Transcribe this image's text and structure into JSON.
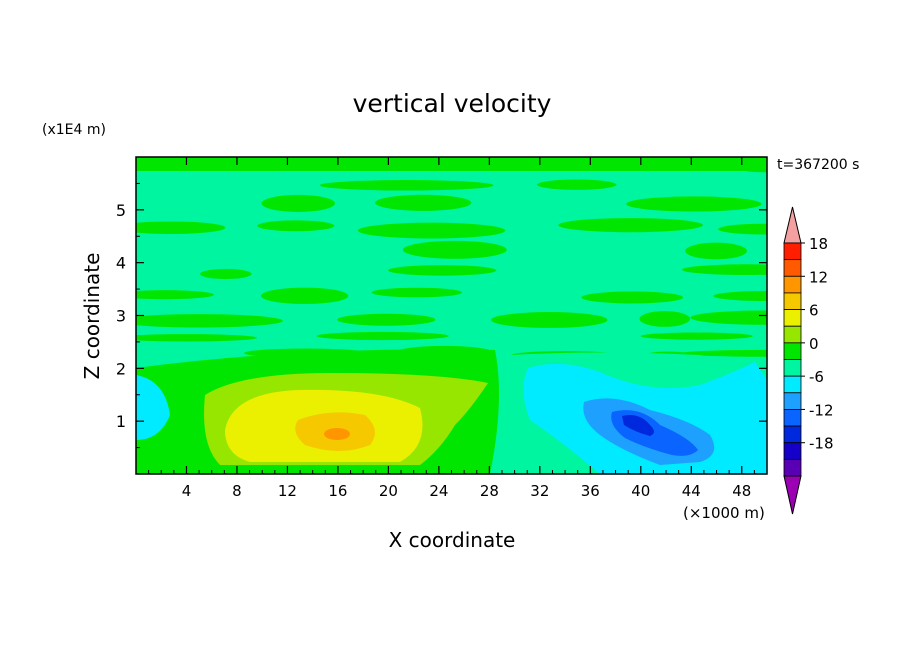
{
  "chart_data": {
    "type": "heatmap",
    "title": "vertical velocity",
    "time_label": "t=367200 s",
    "xlabel": "X coordinate",
    "ylabel": "Z coordinate",
    "x_unit": "(×1000 m)",
    "y_unit": "(x1E4 m)",
    "xlim": [
      0,
      50
    ],
    "ylim": [
      0,
      6
    ],
    "x_ticks": [
      4,
      8,
      12,
      16,
      20,
      24,
      28,
      32,
      36,
      40,
      44,
      48
    ],
    "y_ticks": [
      1,
      2,
      3,
      4,
      5
    ],
    "grid": false,
    "colorbar": {
      "position": "right",
      "levels": [
        -21,
        -18,
        -15,
        -12,
        -9,
        -6,
        -3,
        0,
        3,
        6,
        9,
        12,
        15,
        18,
        21
      ],
      "tick_labels": [
        18,
        12,
        6,
        0,
        -6,
        -12,
        -18
      ],
      "colors": [
        "#9b00b4",
        "#5a00b4",
        "#1400c8",
        "#0028dc",
        "#0a64ff",
        "#1ea0ff",
        "#00ebff",
        "#00f5a0",
        "#00e600",
        "#96e600",
        "#ebf000",
        "#f5c800",
        "#ff9600",
        "#ff5a00",
        "#ff1e00",
        "#f5a0a0"
      ],
      "extend": "both"
    },
    "features": [
      {
        "type": "updraft",
        "x_center": 16,
        "z_center": 0.75,
        "max_value": 9,
        "x_extent": [
          6,
          30
        ],
        "z_extent": [
          0,
          1.8
        ]
      },
      {
        "type": "downdraft",
        "x_center": 41,
        "z_center": 0.8,
        "min_value": -12,
        "x_extent": [
          30,
          50
        ],
        "z_extent": [
          0,
          2.2
        ]
      }
    ]
  }
}
